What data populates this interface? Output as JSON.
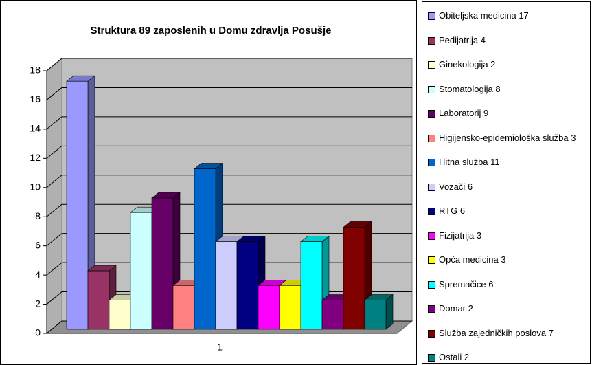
{
  "chart_data": {
    "type": "bar3d",
    "title": "Struktura 89 zaposlenih u Domu zdravlja Posušje",
    "categories": [
      "1"
    ],
    "series": [
      {
        "name": "Obiteljska medicina 17",
        "color": "#9999ff",
        "values": [
          17
        ]
      },
      {
        "name": "Pedijatrija 4",
        "color": "#993366",
        "values": [
          4
        ]
      },
      {
        "name": "Ginekologija 2",
        "color": "#ffffcc",
        "values": [
          2
        ]
      },
      {
        "name": "Stomatologija 8",
        "color": "#ccffff",
        "values": [
          8
        ]
      },
      {
        "name": "Laboratorij 9",
        "color": "#660066",
        "values": [
          9
        ]
      },
      {
        "name": "Higijensko-epidemiološka služba 3",
        "color": "#ff8080",
        "values": [
          3
        ]
      },
      {
        "name": "Hitna služba 11",
        "color": "#0066cc",
        "values": [
          11
        ]
      },
      {
        "name": "Vozači 6",
        "color": "#ccccff",
        "values": [
          6
        ]
      },
      {
        "name": "RTG 6",
        "color": "#000080",
        "values": [
          6
        ]
      },
      {
        "name": "Fizijatrija 3",
        "color": "#ff00ff",
        "values": [
          3
        ]
      },
      {
        "name": "Opća medicina 3",
        "color": "#ffff00",
        "values": [
          3
        ]
      },
      {
        "name": "Spremačice 6",
        "color": "#00ffff",
        "values": [
          6
        ]
      },
      {
        "name": "Domar 2",
        "color": "#800080",
        "values": [
          2
        ]
      },
      {
        "name": "Služba zajedničkih poslova 7",
        "color": "#800000",
        "values": [
          7
        ]
      },
      {
        "name": "Ostali 2",
        "color": "#008080",
        "values": [
          2
        ]
      }
    ],
    "ylim": [
      0,
      18
    ],
    "yticks": [
      0,
      2,
      4,
      6,
      8,
      10,
      12,
      14,
      16,
      18
    ],
    "grid": true,
    "legend": "right"
  }
}
